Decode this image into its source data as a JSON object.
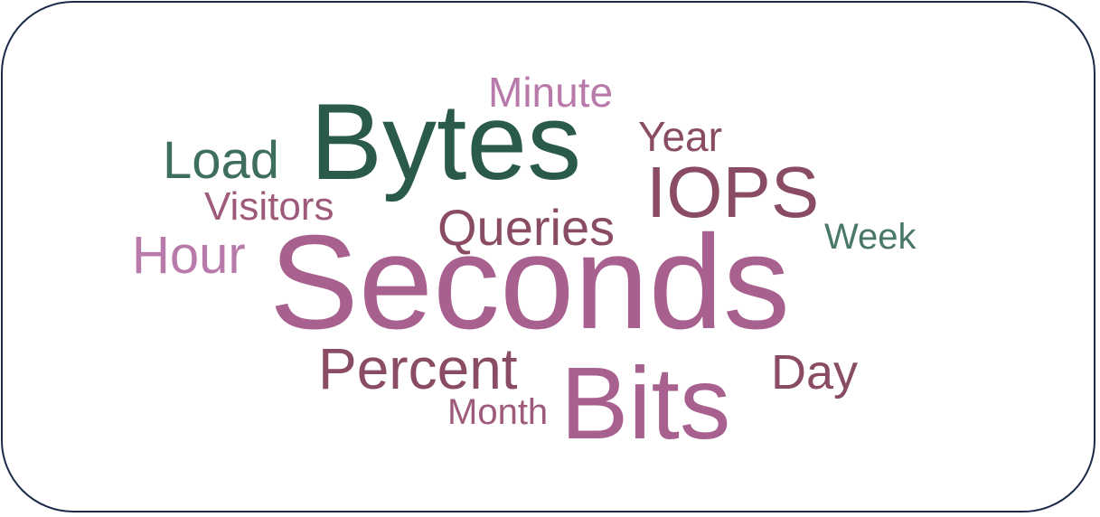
{
  "words": [
    {
      "text": "Seconds",
      "color": "#a8608e"
    },
    {
      "text": "Bytes",
      "color": "#2a5a48"
    },
    {
      "text": "Bits",
      "color": "#a8608e"
    },
    {
      "text": "IOPS",
      "color": "#8a4c64"
    },
    {
      "text": "Percent",
      "color": "#8a4c64"
    },
    {
      "text": "Queries",
      "color": "#8a4c64"
    },
    {
      "text": "Load",
      "color": "#3e6e5c"
    },
    {
      "text": "Hour",
      "color": "#b87aaa"
    },
    {
      "text": "Minute",
      "color": "#b87aaa"
    },
    {
      "text": "Visitors",
      "color": "#9e5a7a"
    },
    {
      "text": "Year",
      "color": "#8a4c64"
    },
    {
      "text": "Day",
      "color": "#8a4c64"
    },
    {
      "text": "Month",
      "color": "#9e5a7a"
    },
    {
      "text": "Week",
      "color": "#4a7868"
    }
  ]
}
